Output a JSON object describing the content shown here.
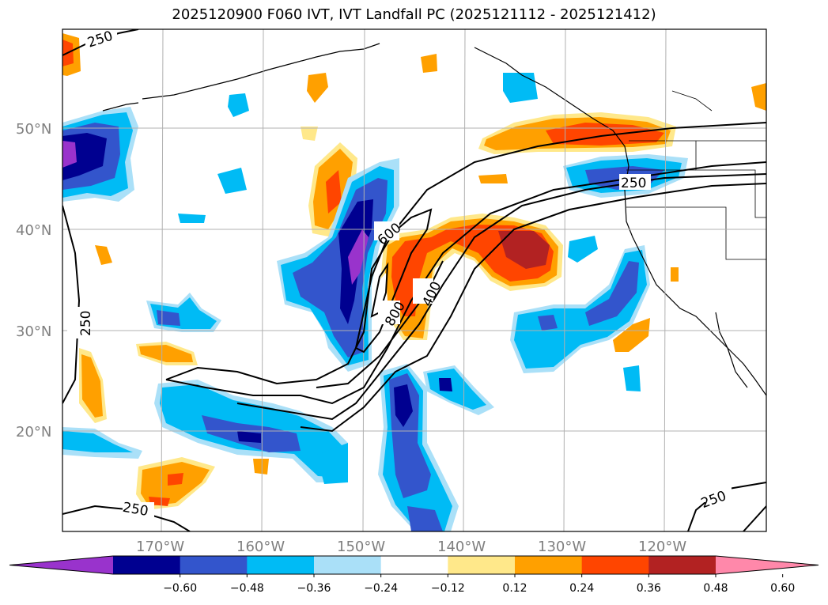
{
  "title": "2025120900 F060 IVT, IVT Landfall PC (2025121112 - 2025121412)",
  "lat_labels": [
    "50°N",
    "40°N",
    "30°N",
    "20°N"
  ],
  "lon_labels": [
    "170°W",
    "160°W",
    "150°W",
    "140°W",
    "130°W",
    "120°W"
  ],
  "contour_labels": [
    "250",
    "250",
    "250",
    "250",
    "250",
    "600",
    "800",
    "400"
  ],
  "colorbar": {
    "ticks": [
      "−0.60",
      "−0.48",
      "−0.36",
      "−0.24",
      "−0.12",
      "0.12",
      "0.24",
      "0.36",
      "0.48",
      "0.60"
    ],
    "colors": [
      "#9933cc",
      "#000090",
      "#3355cc",
      "#00bbf5",
      "#aae0f8",
      "#ffffff",
      "#ffe88a",
      "#ffa000",
      "#ff4500",
      "#b22222",
      "#ff88aa"
    ]
  },
  "colors": {
    "purple": "#9933cc",
    "navy": "#000090",
    "blue": "#3355cc",
    "cyan": "#00bbf5",
    "lightblue": "#aae0f8",
    "yellow": "#ffe88a",
    "orange": "#ffa000",
    "redorange": "#ff4500",
    "darkred": "#b22222",
    "pink": "#ff88aa"
  }
}
